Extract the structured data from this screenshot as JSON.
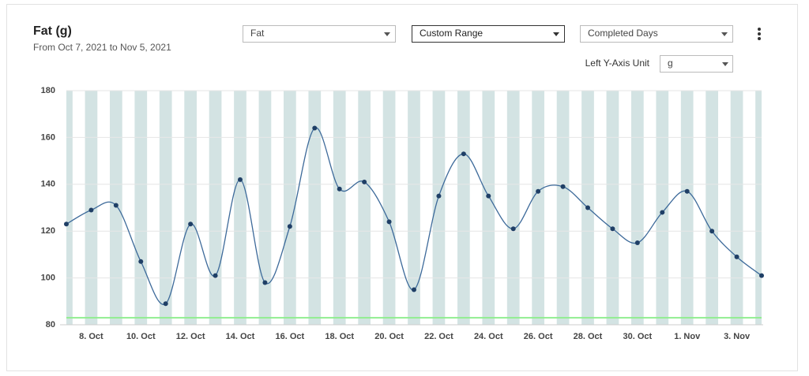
{
  "chart_data": {
    "type": "line",
    "title": "Fat (g)",
    "subtitle": "From Oct 7, 2021 to Nov 5, 2021",
    "categories": [
      null,
      "8. Oct",
      null,
      "10. Oct",
      null,
      "12. Oct",
      null,
      "14. Oct",
      null,
      "16. Oct",
      null,
      "18. Oct",
      null,
      "20. Oct",
      null,
      "22. Oct",
      null,
      "24. Oct",
      null,
      "26. Oct",
      null,
      "28. Oct",
      null,
      "30. Oct",
      null,
      "1. Nov",
      null,
      "3. Nov",
      null
    ],
    "series": [
      {
        "name": "Fat",
        "color": "#3d6a9a",
        "values": [
          123,
          129,
          131,
          107,
          89,
          123,
          101,
          142,
          98,
          122,
          164,
          138,
          141,
          124,
          95,
          135,
          153,
          135,
          121,
          137,
          139,
          130,
          121,
          115,
          128,
          137,
          120,
          109,
          101
        ]
      }
    ],
    "ylim": [
      80,
      180
    ],
    "yticks": [
      80,
      100,
      120,
      140,
      160,
      180
    ],
    "grid": true,
    "reference_line": {
      "value": 83,
      "color": "#90ee90"
    },
    "band_color": "#d3e3e3"
  },
  "controls": {
    "metric": "Fat",
    "range": "Custom Range",
    "days": "Completed Days",
    "unit_label": "Left Y-Axis Unit",
    "unit": "g"
  }
}
